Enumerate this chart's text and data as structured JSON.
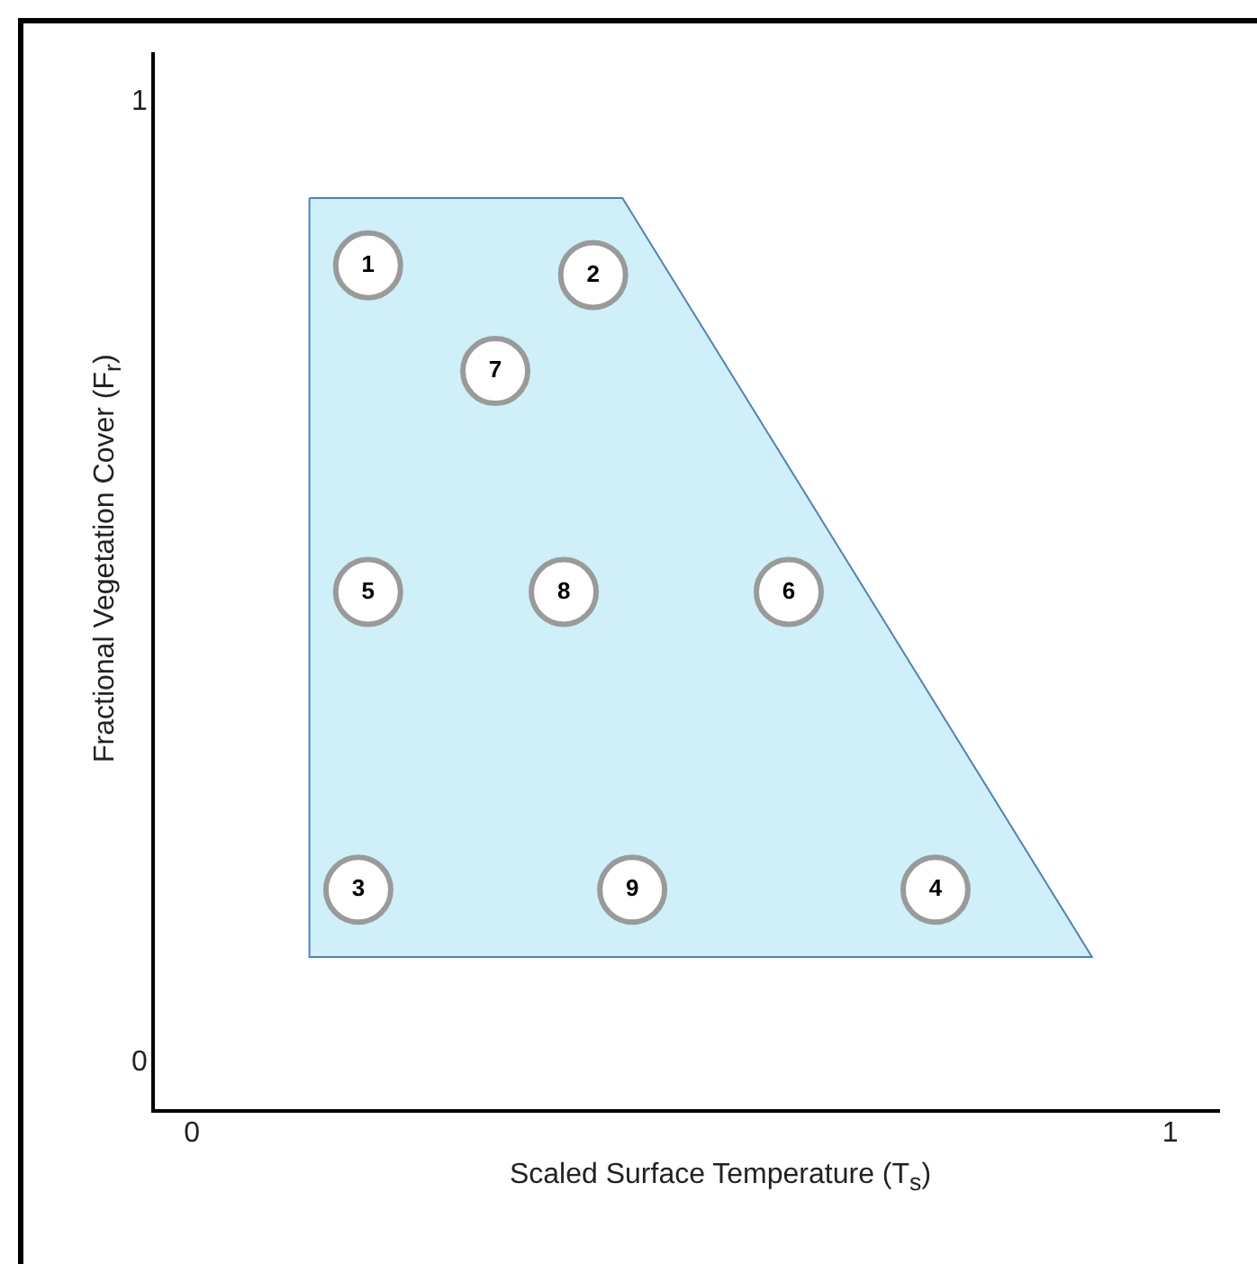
{
  "chart_data": {
    "type": "scatter",
    "xlabel": "Scaled Surface Temperature (T$_{s}$)",
    "ylabel": "Fractional Vegetation Cover (F$_{r}$)",
    "xlim": [
      -0.04,
      1.05
    ],
    "ylim": [
      -0.05,
      1.05
    ],
    "xticks": [
      0,
      1
    ],
    "yticks": [
      0,
      1
    ],
    "grid": false,
    "legend": false,
    "series": [
      {
        "type": "area",
        "color": "#cff0f8",
        "x": [
          0.12,
          0.44,
          0.92,
          0.12,
          0.12
        ],
        "values": [
          0.9,
          0.9,
          0.11,
          0.11,
          0.9
        ]
      },
      {
        "color": "#ffffff",
        "marker": "circle",
        "x": [
          0.18,
          0.41,
          0.17,
          0.76,
          0.18,
          0.61,
          0.31,
          0.38,
          0.45
        ],
        "values": [
          0.83,
          0.82,
          0.18,
          0.18,
          0.49,
          0.49,
          0.72,
          0.49,
          0.18
        ]
      }
    ],
    "annotations": [
      {
        "text": "1",
        "x": 0.18,
        "y": 0.83
      },
      {
        "text": "2",
        "x": 0.41,
        "y": 0.82
      },
      {
        "text": "3",
        "x": 0.17,
        "y": 0.18
      },
      {
        "text": "4",
        "x": 0.76,
        "y": 0.18
      },
      {
        "text": "5",
        "x": 0.18,
        "y": 0.49
      },
      {
        "text": "6",
        "x": 0.61,
        "y": 0.49
      },
      {
        "text": "7",
        "x": 0.31,
        "y": 0.72
      },
      {
        "text": "8",
        "x": 0.38,
        "y": 0.49
      },
      {
        "text": "9",
        "x": 0.45,
        "y": 0.18
      }
    ]
  }
}
